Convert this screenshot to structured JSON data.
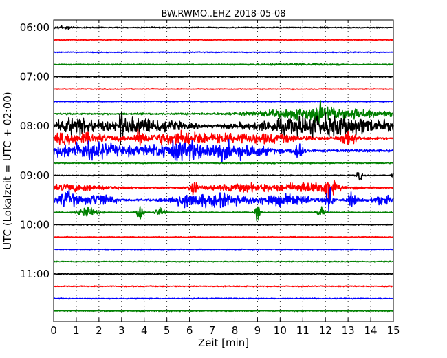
{
  "chart_data": {
    "type": "line",
    "title": "BW.RWMO..EHZ 2018-05-08",
    "xlabel": "Zeit  [min]",
    "ylabel": "UTC (Lokalzeit = UTC + 02:00)",
    "xlim": [
      0,
      15
    ],
    "x_ticks": [
      "0",
      "1",
      "2",
      "3",
      "4",
      "5",
      "6",
      "7",
      "8",
      "9",
      "10",
      "11",
      "12",
      "13",
      "14",
      "15"
    ],
    "y_tick_labels": [
      "06:00",
      "07:00",
      "08:00",
      "09:00",
      "10:00",
      "11:00"
    ],
    "grid": "vertical dotted at each minute",
    "trace_colors": [
      "#000000",
      "#ff0000",
      "#0000ff",
      "#008000"
    ],
    "traces": [
      {
        "start": "06:00",
        "color": "#000000",
        "noise": 0.6,
        "events": [
          [
            0.3,
            1.2,
            1.8
          ]
        ]
      },
      {
        "start": "06:15",
        "color": "#ff0000",
        "noise": 0.5,
        "events": []
      },
      {
        "start": "06:30",
        "color": "#0000ff",
        "noise": 0.5,
        "events": []
      },
      {
        "start": "06:45",
        "color": "#008000",
        "noise": 0.6,
        "events": [
          [
            10.5,
            4.0,
            0.8
          ]
        ]
      },
      {
        "start": "07:00",
        "color": "#000000",
        "noise": 0.6,
        "events": []
      },
      {
        "start": "07:15",
        "color": "#ff0000",
        "noise": 0.5,
        "events": []
      },
      {
        "start": "07:30",
        "color": "#0000ff",
        "noise": 0.5,
        "events": []
      },
      {
        "start": "07:45",
        "color": "#008000",
        "noise": 1.0,
        "events": [
          [
            12.0,
            5.5,
            7.0
          ],
          [
            11.7,
            0.2,
            13.0
          ]
        ]
      },
      {
        "start": "08:00",
        "color": "#000000",
        "noise": 1.5,
        "events": [
          [
            1.0,
            2.0,
            9.0
          ],
          [
            4.0,
            3.0,
            9.0
          ],
          [
            12.0,
            6.0,
            11.0
          ],
          [
            3.0,
            0.2,
            14.0
          ]
        ]
      },
      {
        "start": "08:15",
        "color": "#ff0000",
        "noise": 1.5,
        "events": [
          [
            1.0,
            3.0,
            6.0
          ],
          [
            5.5,
            3.0,
            7.0
          ],
          [
            9.0,
            4.0,
            5.0
          ],
          [
            13.0,
            0.7,
            8.0
          ],
          [
            3.8,
            0.3,
            10.0
          ]
        ]
      },
      {
        "start": "08:30",
        "color": "#0000ff",
        "noise": 1.5,
        "events": [
          [
            1.5,
            3.5,
            9.0
          ],
          [
            5.5,
            3.0,
            9.0
          ],
          [
            8.0,
            3.0,
            8.0
          ],
          [
            10.8,
            0.4,
            12.0
          ]
        ]
      },
      {
        "start": "08:45",
        "color": "#008000",
        "noise": 0.7,
        "events": []
      },
      {
        "start": "09:00",
        "color": "#000000",
        "noise": 0.6,
        "events": [
          [
            13.5,
            0.25,
            6.0
          ],
          [
            15.0,
            0.2,
            4.0
          ]
        ]
      },
      {
        "start": "09:15",
        "color": "#ff0000",
        "noise": 1.0,
        "events": [
          [
            1.0,
            3.0,
            3.5
          ],
          [
            6.2,
            0.3,
            12.0
          ],
          [
            8.5,
            3.5,
            4.0
          ],
          [
            11.5,
            2.5,
            6.0
          ],
          [
            12.2,
            0.3,
            16.0
          ]
        ]
      },
      {
        "start": "09:30",
        "color": "#0000ff",
        "noise": 1.2,
        "events": [
          [
            0.6,
            0.8,
            10.0
          ],
          [
            2.0,
            1.5,
            6.0
          ],
          [
            6.0,
            2.0,
            7.0
          ],
          [
            7.5,
            1.5,
            6.0
          ],
          [
            10.0,
            3.0,
            6.0
          ],
          [
            12.2,
            0.3,
            14.0
          ],
          [
            13.2,
            0.4,
            9.0
          ],
          [
            14.5,
            1.0,
            5.0
          ]
        ]
      },
      {
        "start": "09:45",
        "color": "#008000",
        "noise": 0.6,
        "events": [
          [
            1.5,
            0.8,
            6.0
          ],
          [
            3.8,
            0.3,
            10.0
          ],
          [
            4.7,
            0.4,
            6.0
          ],
          [
            9.0,
            0.25,
            8.0
          ],
          [
            11.8,
            0.3,
            6.0
          ]
        ]
      },
      {
        "start": "10:00",
        "color": "#000000",
        "noise": 0.6,
        "events": []
      },
      {
        "start": "10:15",
        "color": "#ff0000",
        "noise": 0.5,
        "events": []
      },
      {
        "start": "10:30",
        "color": "#0000ff",
        "noise": 0.5,
        "events": []
      },
      {
        "start": "10:45",
        "color": "#008000",
        "noise": 0.6,
        "events": []
      },
      {
        "start": "11:00",
        "color": "#000000",
        "noise": 0.6,
        "events": []
      },
      {
        "start": "11:15",
        "color": "#ff0000",
        "noise": 0.6,
        "events": []
      },
      {
        "start": "11:30",
        "color": "#0000ff",
        "noise": 0.6,
        "events": []
      },
      {
        "start": "11:45",
        "color": "#008000",
        "noise": 0.6,
        "events": []
      }
    ]
  }
}
